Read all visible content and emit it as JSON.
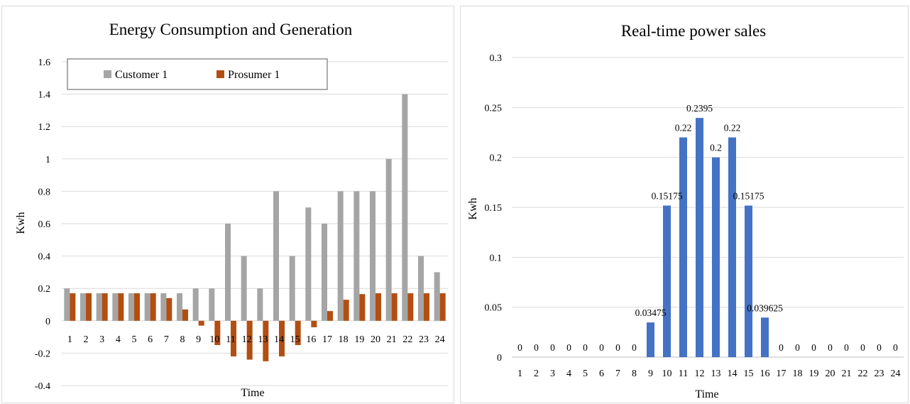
{
  "colors": {
    "customer": "#a5a5a5",
    "prosumer": "#b34e12",
    "sales": "#4472c4",
    "grid": "#d9d9d9",
    "axis": "#bfbfbf"
  },
  "chart_data": [
    {
      "type": "bar",
      "title": "Energy Consumption and Generation",
      "xlabel": "Time",
      "ylabel": "Kwh",
      "ylim": [
        -0.4,
        1.6
      ],
      "yticks": [
        -0.4,
        -0.2,
        0,
        0.2,
        0.4,
        0.6,
        0.8,
        1,
        1.2,
        1.4,
        1.6
      ],
      "ytick_labels": [
        "-0.4",
        "-0.2",
        "0",
        "0.2",
        "0.4",
        "0.6",
        "0.8",
        "1",
        "1.2",
        "1.4",
        "1.6"
      ],
      "grid": true,
      "legend_position": "top-left",
      "categories": [
        "1",
        "2",
        "3",
        "4",
        "5",
        "6",
        "7",
        "8",
        "9",
        "10",
        "11",
        "12",
        "13",
        "14",
        "15",
        "16",
        "17",
        "18",
        "19",
        "20",
        "21",
        "22",
        "23",
        "24"
      ],
      "series": [
        {
          "name": "Customer 1",
          "values": [
            0.2,
            0.17,
            0.17,
            0.17,
            0.17,
            0.17,
            0.17,
            0.17,
            0.2,
            0.2,
            0.6,
            0.4,
            0.2,
            0.8,
            0.4,
            0.7,
            0.6,
            0.8,
            0.8,
            0.8,
            1.0,
            1.4,
            0.4,
            0.3
          ]
        },
        {
          "name": "Prosumer 1",
          "values": [
            0.17,
            0.17,
            0.17,
            0.17,
            0.17,
            0.17,
            0.14,
            0.07,
            -0.03,
            -0.15,
            -0.22,
            -0.24,
            -0.25,
            -0.22,
            -0.15,
            -0.04,
            0.06,
            0.13,
            0.165,
            0.17,
            0.17,
            0.17,
            0.17,
            0.17
          ]
        }
      ]
    },
    {
      "type": "bar",
      "title": "Real-time power sales",
      "xlabel": "Time",
      "ylabel": "Kwh",
      "ylim": [
        0,
        0.3
      ],
      "yticks": [
        0,
        0.05,
        0.1,
        0.15,
        0.2,
        0.25,
        0.3
      ],
      "ytick_labels": [
        "0",
        "0.05",
        "0.1",
        "0.15",
        "0.2",
        "0.25",
        "0.3"
      ],
      "grid": true,
      "categories": [
        "1",
        "2",
        "3",
        "4",
        "5",
        "6",
        "7",
        "8",
        "9",
        "10",
        "11",
        "12",
        "13",
        "14",
        "15",
        "16",
        "17",
        "18",
        "19",
        "20",
        "21",
        "22",
        "23",
        "24"
      ],
      "values": [
        0,
        0,
        0,
        0,
        0,
        0,
        0,
        0,
        0.03475,
        0.15175,
        0.22,
        0.2395,
        0.2,
        0.22,
        0.15175,
        0.039625,
        0,
        0,
        0,
        0,
        0,
        0,
        0,
        0
      ],
      "data_labels": [
        "0",
        "0",
        "0",
        "0",
        "0",
        "0",
        "0",
        "0",
        "0.03475",
        "0.15175",
        "0.22",
        "0.2395",
        "0.2",
        "0.22",
        "0.15175",
        "0.039625",
        "0",
        "0",
        "0",
        "0",
        "0",
        "0",
        "0",
        "0"
      ]
    }
  ]
}
